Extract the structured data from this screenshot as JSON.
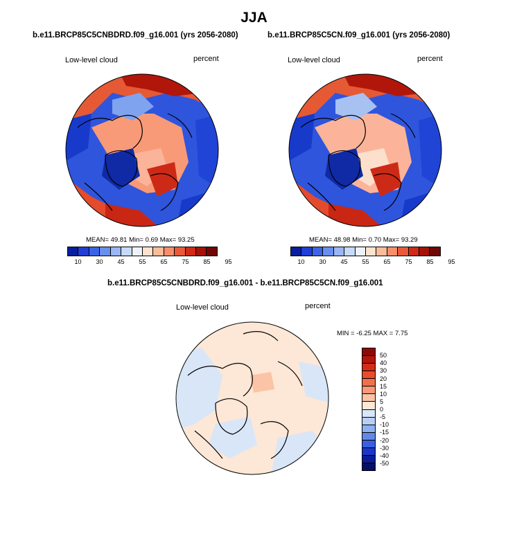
{
  "figure": {
    "season": "JJA",
    "top_left": {
      "title": "b.e11.BRCP85C5CNBDRD.f09_g16.001 (yrs 2056-2080)",
      "variable": "Low-level cloud",
      "units": "percent",
      "mean_label": "MEAN=",
      "mean_value": "49.81",
      "min_label": "Min=",
      "min_value": "0.69",
      "max_label": "Max=",
      "max_value": "93.25"
    },
    "top_right": {
      "title": "b.e11.BRCP85C5CN.f09_g16.001 (yrs 2056-2080)",
      "variable": "Low-level cloud",
      "units": "percent",
      "mean_label": "MEAN=",
      "mean_value": "48.98",
      "min_label": "Min=",
      "min_value": "0.70",
      "max_label": "Max=",
      "max_value": "93.29"
    },
    "diff": {
      "title": "b.e11.BRCP85C5CNBDRD.f09_g16.001 - b.e11.BRCP85C5CN.f09_g16.001",
      "variable": "Low-level cloud",
      "units": "percent",
      "min_label": "MIN =",
      "min_value": "-6.25",
      "max_label": "MAX =",
      "max_value": "7.75"
    }
  },
  "colorbar_top": {
    "tick_labels": [
      "10",
      "30",
      "45",
      "55",
      "65",
      "75",
      "85",
      "95"
    ],
    "colors": [
      "#0a1f9e",
      "#1f3fd6",
      "#3c64e6",
      "#6a8fef",
      "#9ab6f5",
      "#c6daf9",
      "#eef3fb",
      "#fde3cf",
      "#fbbc9b",
      "#f68f6a",
      "#e85b3a",
      "#cf2b17",
      "#a51208",
      "#6f0705"
    ]
  },
  "colorbar_diff": {
    "tick_labels": [
      "50",
      "40",
      "30",
      "20",
      "15",
      "10",
      "5",
      "0",
      "-5",
      "-10",
      "-15",
      "-20",
      "-30",
      "-40",
      "-50"
    ],
    "colors": [
      "#8e0906",
      "#b3160c",
      "#d42c17",
      "#ea4b2c",
      "#f26f4e",
      "#f79878",
      "#fbc4a7",
      "#fde7d6",
      "#d8e6f8",
      "#b7cff5",
      "#8eb0f0",
      "#6288e8",
      "#3960df",
      "#1b36c9",
      "#0b1c96",
      "#050f66"
    ]
  }
}
